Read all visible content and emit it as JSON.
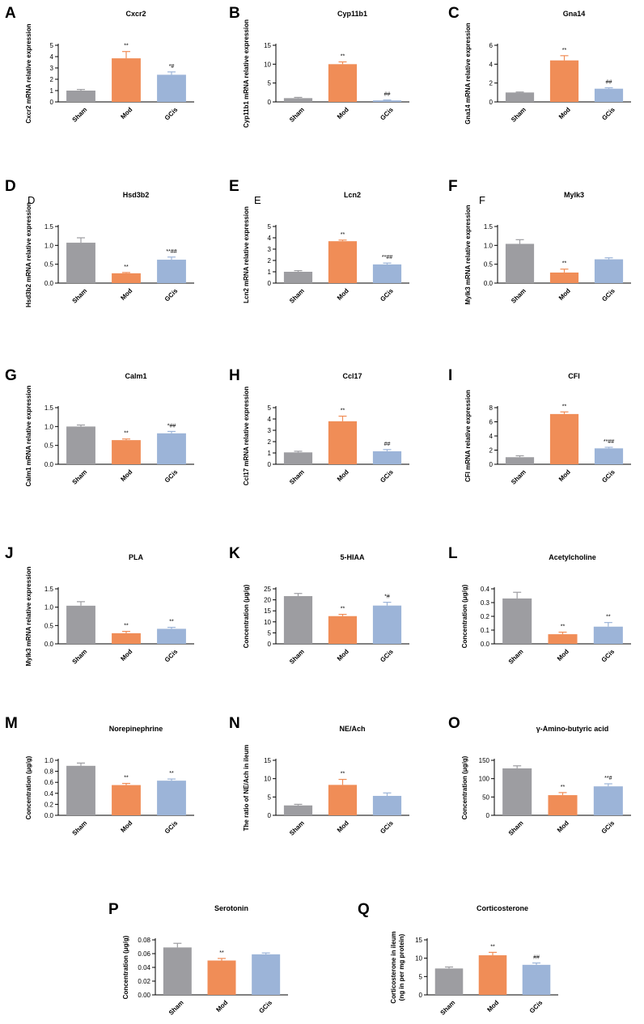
{
  "colors": {
    "sham": "#9d9da1",
    "mod": "#f08d57",
    "gcis": "#9cb4d8"
  },
  "chart_data": [
    {
      "letter": "A",
      "type": "bar",
      "title": "Cxcr2",
      "ylabel": "Cxcr2 mRNA relative expression",
      "categories": [
        "Sham",
        "Mod",
        "GCis"
      ],
      "values": [
        1.0,
        3.85,
        2.4
      ],
      "errors": [
        0.1,
        0.6,
        0.25
      ],
      "annotations": [
        "",
        "**",
        "*#"
      ],
      "ylim": [
        0,
        5
      ],
      "yticks": [
        "0",
        "1",
        "2",
        "3",
        "4",
        "5"
      ]
    },
    {
      "letter": "B",
      "type": "bar",
      "title": "Cyp11b1",
      "ylabel": "Cyp11b1 mRNA relative expression",
      "categories": [
        "Sham",
        "Mod",
        "GCis"
      ],
      "values": [
        1.0,
        10.0,
        0.4
      ],
      "errors": [
        0.2,
        0.6,
        0.1
      ],
      "annotations": [
        "",
        "**",
        "##"
      ],
      "ylim": [
        0,
        15
      ],
      "yticks": [
        "0",
        "5",
        "10",
        "15"
      ]
    },
    {
      "letter": "C",
      "type": "bar",
      "title": "Gna14",
      "ylabel": "Gna14 mRNA relative expression",
      "categories": [
        "Sham",
        "Mod",
        "GCis"
      ],
      "values": [
        1.0,
        4.4,
        1.4
      ],
      "errors": [
        0.05,
        0.5,
        0.1
      ],
      "annotations": [
        "",
        "**",
        "##"
      ],
      "ylim": [
        0,
        6
      ],
      "yticks": [
        "0",
        "2",
        "4",
        "6"
      ]
    },
    {
      "letter": "D",
      "sublabel": "D",
      "type": "bar",
      "title": "Hsd3b2",
      "ylabel": "Hsd3b2 mRNA relative expression",
      "categories": [
        "Sham",
        "Mod",
        "GCis"
      ],
      "values": [
        1.07,
        0.26,
        0.62
      ],
      "errors": [
        0.13,
        0.02,
        0.07
      ],
      "annotations": [
        "",
        "**",
        "**##"
      ],
      "ylim": [
        0,
        1.5
      ],
      "yticks": [
        "0.0",
        "0.5",
        "1.0",
        "1.5"
      ]
    },
    {
      "letter": "E",
      "sublabel": "E",
      "type": "bar",
      "title": "Lcn2",
      "ylabel": "Lcn2 mRNA relative expression",
      "categories": [
        "Sham",
        "Mod",
        "GCis"
      ],
      "values": [
        1.0,
        3.7,
        1.65
      ],
      "errors": [
        0.1,
        0.1,
        0.12
      ],
      "annotations": [
        "",
        "**",
        "**##"
      ],
      "ylim": [
        0,
        5
      ],
      "yticks": [
        "0",
        "1",
        "2",
        "3",
        "4",
        "5"
      ]
    },
    {
      "letter": "F",
      "sublabel": "F",
      "type": "bar",
      "title": "Mylk3",
      "ylabel": "Mylk3 mRNA relative expression",
      "categories": [
        "Sham",
        "Mod",
        "GCis"
      ],
      "values": [
        1.04,
        0.28,
        0.63
      ],
      "errors": [
        0.11,
        0.09,
        0.04
      ],
      "annotations": [
        "",
        "**",
        ""
      ],
      "ylim": [
        0,
        1.5
      ],
      "yticks": [
        "0.0",
        "0.5",
        "1.0",
        "1.5"
      ]
    },
    {
      "letter": "G",
      "type": "bar",
      "title": "Calm1",
      "ylabel": "Calm1 mRNA relative expression",
      "categories": [
        "Sham",
        "Mod",
        "GCis"
      ],
      "values": [
        1.0,
        0.64,
        0.82
      ],
      "errors": [
        0.04,
        0.03,
        0.05
      ],
      "annotations": [
        "",
        "**",
        "*##"
      ],
      "ylim": [
        0,
        1.5
      ],
      "yticks": [
        "0.0",
        "0.5",
        "1.0",
        "1.5"
      ]
    },
    {
      "letter": "H",
      "type": "bar",
      "title": "Ccl17",
      "ylabel": "Ccl17 mRNA relative expression",
      "categories": [
        "Sham",
        "Mod",
        "GCis"
      ],
      "values": [
        1.05,
        3.8,
        1.15
      ],
      "errors": [
        0.1,
        0.45,
        0.15
      ],
      "annotations": [
        "",
        "**",
        "##"
      ],
      "ylim": [
        0,
        5
      ],
      "yticks": [
        "0",
        "1",
        "2",
        "3",
        "4",
        "5"
      ]
    },
    {
      "letter": "I",
      "type": "bar",
      "title": "CFI",
      "ylabel": "CFI mRNA relative expression",
      "categories": [
        "Sham",
        "Mod",
        "GCis"
      ],
      "values": [
        1.0,
        7.1,
        2.25
      ],
      "errors": [
        0.2,
        0.3,
        0.15
      ],
      "annotations": [
        "",
        "**",
        "**##"
      ],
      "ylim": [
        0,
        8
      ],
      "yticks": [
        "0",
        "2",
        "4",
        "6",
        "8"
      ]
    },
    {
      "letter": "J",
      "type": "bar",
      "title": "PLA",
      "ylabel": "Mylk3 mRNA relative expression",
      "categories": [
        "Sham",
        "Mod",
        "GCis"
      ],
      "values": [
        1.04,
        0.29,
        0.41
      ],
      "errors": [
        0.11,
        0.05,
        0.04
      ],
      "annotations": [
        "",
        "**",
        "**"
      ],
      "ylim": [
        0,
        1.5
      ],
      "yticks": [
        "0.0",
        "0.5",
        "1.0",
        "1.5"
      ]
    },
    {
      "letter": "K",
      "type": "bar",
      "title": "5-HIAA",
      "ylabel": "Concentration (μg/g)",
      "categories": [
        "Sham",
        "Mod",
        "GCis"
      ],
      "values": [
        21.7,
        12.6,
        17.4
      ],
      "errors": [
        1.2,
        0.8,
        1.5
      ],
      "annotations": [
        "",
        "**",
        "*#"
      ],
      "ylim": [
        0,
        25
      ],
      "yticks": [
        "0",
        "5",
        "10",
        "15",
        "20",
        "25"
      ]
    },
    {
      "letter": "L",
      "type": "bar",
      "title": "Acetylcholine",
      "ylabel": "Concentration (μg/g)",
      "categories": [
        "Sham",
        "Mod",
        "GCis"
      ],
      "values": [
        0.33,
        0.07,
        0.125
      ],
      "errors": [
        0.045,
        0.015,
        0.03
      ],
      "annotations": [
        "",
        "**",
        "**"
      ],
      "ylim": [
        0,
        0.4
      ],
      "yticks": [
        "0.0",
        "0.1",
        "0.2",
        "0.3",
        "0.4"
      ]
    },
    {
      "letter": "M",
      "type": "bar",
      "title": "Norepinephrine",
      "ylabel": "Concentration (μg/g)",
      "categories": [
        "Sham",
        "Mod",
        "GCis"
      ],
      "values": [
        0.9,
        0.55,
        0.63
      ],
      "errors": [
        0.05,
        0.03,
        0.03
      ],
      "annotations": [
        "",
        "**",
        "**"
      ],
      "ylim": [
        0,
        1.0
      ],
      "yticks": [
        "0.0",
        "0.2",
        "0.4",
        "0.6",
        "0.8",
        "1.0"
      ]
    },
    {
      "letter": "N",
      "type": "bar",
      "title": "NE/Ach",
      "ylabel": "The ratio of NE/Ach in ileum",
      "categories": [
        "Sham",
        "Mod",
        "GCis"
      ],
      "values": [
        2.7,
        8.3,
        5.3
      ],
      "errors": [
        0.3,
        1.5,
        0.8
      ],
      "annotations": [
        "",
        "**",
        ""
      ],
      "ylim": [
        0,
        15
      ],
      "yticks": [
        "0",
        "5",
        "10",
        "15"
      ]
    },
    {
      "letter": "O",
      "type": "bar",
      "title": "γ-Amino-butyric acid",
      "ylabel": "Concentration (μg/g)",
      "categories": [
        "Sham",
        "Mod",
        "GCis"
      ],
      "values": [
        128,
        55,
        79
      ],
      "errors": [
        7,
        7,
        7
      ],
      "annotations": [
        "",
        "**",
        "**#"
      ],
      "ylim": [
        0,
        150
      ],
      "yticks": [
        "0",
        "50",
        "100",
        "150"
      ]
    },
    {
      "letter": "P",
      "type": "bar",
      "title": "Serotonin",
      "ylabel": "Concentration (μg/g)",
      "categories": [
        "Sham",
        "Mod",
        "GCis"
      ],
      "values": [
        0.069,
        0.05,
        0.059
      ],
      "errors": [
        0.006,
        0.003,
        0.002
      ],
      "annotations": [
        "",
        "**",
        ""
      ],
      "ylim": [
        0,
        0.08
      ],
      "yticks": [
        "0.00",
        "0.02",
        "0.04",
        "0.06",
        "0.08"
      ]
    },
    {
      "letter": "Q",
      "type": "bar",
      "title": "Corticosterone",
      "ylabel": "Corticosterone  in ileum",
      "ylabel2": "(ng in per mg protein)",
      "categories": [
        "Sham",
        "Mod",
        "GCis"
      ],
      "values": [
        7.2,
        10.8,
        8.2
      ],
      "errors": [
        0.4,
        0.8,
        0.5
      ],
      "annotations": [
        "",
        "**",
        "##"
      ],
      "ylim": [
        0,
        15
      ],
      "yticks": [
        "0",
        "5",
        "10",
        "15"
      ]
    }
  ]
}
